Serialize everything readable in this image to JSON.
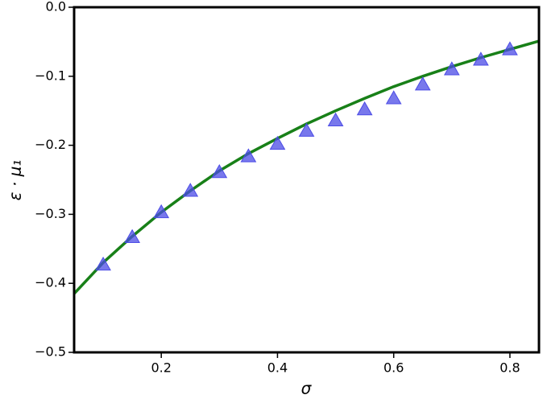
{
  "chart_data": {
    "type": "scatter",
    "xlabel": "σ",
    "ylabel": "ε · μ₁",
    "xlim": [
      0.05,
      0.85
    ],
    "ylim": [
      -0.5,
      0
    ],
    "xticks": [
      0.2,
      0.4,
      0.6,
      0.8
    ],
    "yticks": [
      {
        "value": -0.5,
        "label": "−0.5"
      },
      {
        "value": -0.4,
        "label": "−0.4"
      },
      {
        "value": -0.3,
        "label": "−0.3"
      },
      {
        "value": -0.2,
        "label": "−0.2"
      },
      {
        "value": -0.1,
        "label": "−0.1"
      },
      {
        "value": 0,
        "label": "0.0"
      }
    ],
    "series": [
      {
        "type": "line",
        "color": "#188018",
        "x": [
          0.05,
          0.1,
          0.15,
          0.2,
          0.25,
          0.3,
          0.35,
          0.4,
          0.45,
          0.5,
          0.55,
          0.6,
          0.65,
          0.7,
          0.75,
          0.8,
          0.85
        ],
        "values": [
          -0.415,
          -0.37,
          -0.332,
          -0.297,
          -0.266,
          -0.237,
          -0.212,
          -0.19,
          -0.169,
          -0.15,
          -0.132,
          -0.115,
          -0.1,
          -0.086,
          -0.073,
          -0.061,
          -0.049
        ]
      },
      {
        "type": "scatter",
        "marker": "triangle",
        "color": "#4b4be6",
        "x": [
          0.1,
          0.15,
          0.2,
          0.25,
          0.3,
          0.35,
          0.4,
          0.45,
          0.5,
          0.55,
          0.6,
          0.65,
          0.7,
          0.75,
          0.8
        ],
        "values": [
          -0.373,
          -0.333,
          -0.297,
          -0.266,
          -0.239,
          -0.216,
          -0.198,
          -0.179,
          -0.164,
          -0.148,
          -0.132,
          -0.112,
          -0.09,
          -0.076,
          -0.061
        ]
      }
    ]
  }
}
